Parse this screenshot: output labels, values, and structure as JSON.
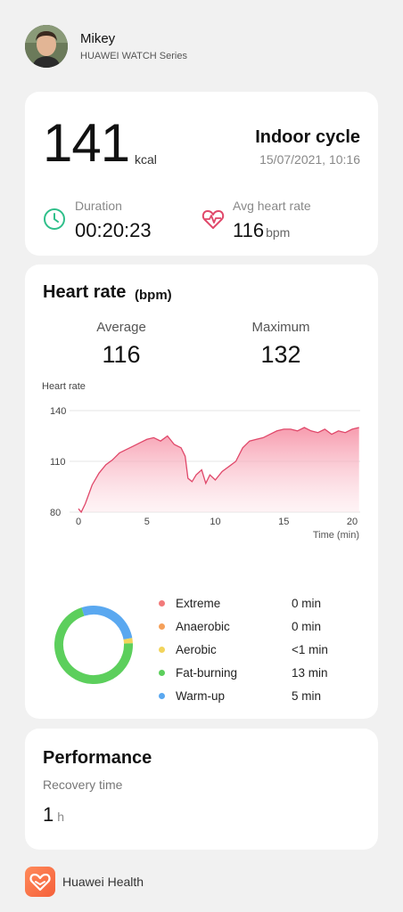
{
  "profile": {
    "name": "Mikey",
    "device": "HUAWEI WATCH Series",
    "avatar_icon": "user-avatar"
  },
  "summary": {
    "calories_value": "141",
    "calories_unit": "kcal",
    "activity": "Indoor cycle",
    "datetime": "15/07/2021, 10:16",
    "duration_label": "Duration",
    "duration_value": "00:20:23",
    "avg_hr_label": "Avg heart rate",
    "avg_hr_value": "116",
    "avg_hr_unit": "bpm",
    "duration_icon": "clock-icon",
    "heart_icon": "heartbeat-icon"
  },
  "heart_rate": {
    "title": "Heart rate",
    "unit": "(bpm)",
    "average_label": "Average",
    "average_value": "116",
    "maximum_label": "Maximum",
    "maximum_value": "132",
    "chart_ylabel": "Heart rate",
    "zones": [
      {
        "name": "Extreme",
        "time": "0 min",
        "color": "#f27a7a"
      },
      {
        "name": "Anaerobic",
        "time": "0 min",
        "color": "#f5a05a"
      },
      {
        "name": "Aerobic",
        "time": "<1 min",
        "color": "#f2d45c"
      },
      {
        "name": "Fat-burning",
        "time": "13 min",
        "color": "#5ccf5c"
      },
      {
        "name": "Warm-up",
        "time": "5 min",
        "color": "#5aa8f0"
      }
    ]
  },
  "chart_data": {
    "type": "area",
    "xlabel": "Time (min)",
    "ylabel": "Heart rate",
    "xlim": [
      0,
      20
    ],
    "ylim": [
      80,
      140
    ],
    "xticks": [
      0,
      5,
      10,
      15,
      20
    ],
    "yticks": [
      80,
      110,
      140
    ],
    "line_color": "#e0486a",
    "fill_color": "#f58aa0",
    "grid": "horizontal",
    "x": [
      0,
      0.2,
      0.5,
      1.0,
      1.5,
      2.0,
      2.5,
      3.0,
      3.5,
      4.0,
      4.5,
      5.0,
      5.5,
      6.0,
      6.5,
      7.0,
      7.5,
      7.8,
      8.0,
      8.3,
      8.6,
      9.0,
      9.3,
      9.6,
      10.0,
      10.5,
      11.0,
      11.5,
      12.0,
      12.5,
      13.0,
      13.5,
      14.0,
      14.5,
      15.0,
      15.5,
      16.0,
      16.5,
      17.0,
      17.5,
      18.0,
      18.5,
      19.0,
      19.5,
      20.0,
      20.5
    ],
    "y": [
      82,
      80,
      85,
      96,
      103,
      108,
      111,
      115,
      117,
      119,
      121,
      123,
      124,
      122,
      125,
      120,
      118,
      113,
      100,
      98,
      102,
      105,
      97,
      102,
      99,
      104,
      107,
      110,
      118,
      122,
      123,
      124,
      126,
      128,
      129,
      129,
      128,
      130,
      128,
      127,
      129,
      126,
      128,
      127,
      129,
      130
    ]
  },
  "performance": {
    "title": "Performance",
    "recovery_label": "Recovery time",
    "recovery_value": "1",
    "recovery_unit": "h"
  },
  "footer": {
    "app_name": "Huawei Health",
    "app_icon": "huawei-health-heart-icon"
  }
}
